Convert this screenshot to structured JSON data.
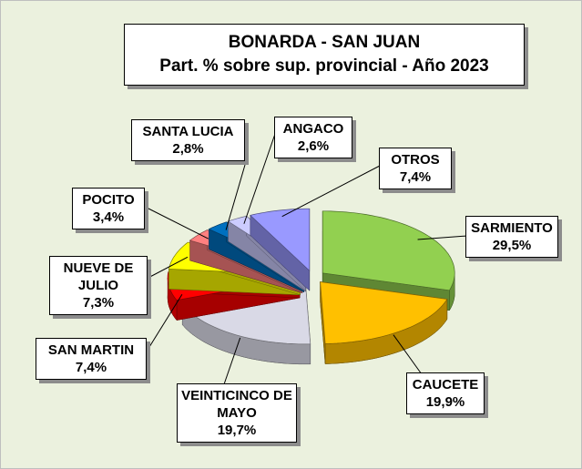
{
  "chart_data": {
    "type": "pie3d",
    "title": "BONARDA - SAN JUAN",
    "subtitle": "Part. % sobre sup. provincial  - Año 2023",
    "categories": [
      "SARMIENTO",
      "CAUCETE",
      "VEINTICINCO DE MAYO",
      "SAN MARTIN",
      "NUEVE DE JULIO",
      "POCITO",
      "SANTA LUCIA",
      "ANGACO",
      "OTROS"
    ],
    "values": [
      29.5,
      19.9,
      19.7,
      7.4,
      7.3,
      3.4,
      2.8,
      2.6,
      7.4
    ],
    "value_labels": [
      "29,5%",
      "19,9%",
      "19,7%",
      "7,4%",
      "7,3%",
      "3,4%",
      "2,8%",
      "2,6%",
      "7,4%"
    ],
    "colors": [
      "#92d050",
      "#ffc000",
      "#d9d9e6",
      "#ff0000",
      "#ffff00",
      "#ff8080",
      "#0070c0",
      "#ccccff",
      "#9999ff"
    ]
  }
}
